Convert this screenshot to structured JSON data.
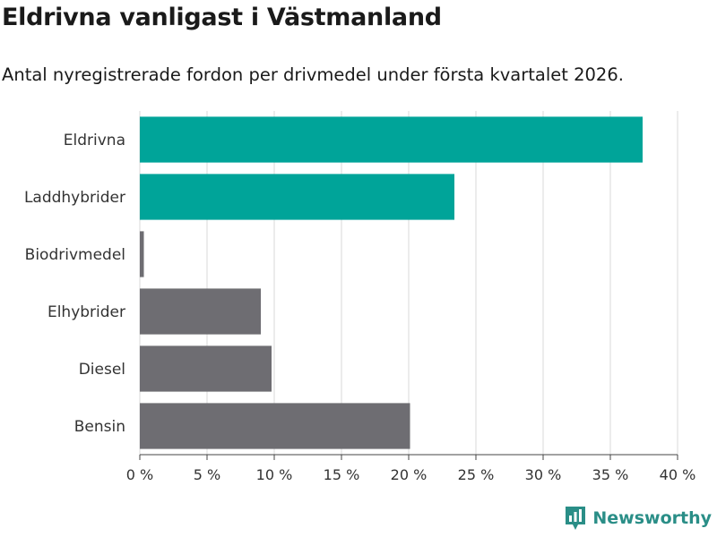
{
  "title": "Eldrivna vanligast i Västmanland",
  "subtitle": "Antal nyregistrerade fordon per drivmedel under första kvartalet 2026.",
  "brand": "Newsworthy",
  "colors": {
    "highlight": "#00a499",
    "default": "#6e6d72",
    "grid": "#d9d9d9",
    "brand": "#2a8e87"
  },
  "chart_data": {
    "type": "bar",
    "orientation": "horizontal",
    "categories": [
      "Eldrivna",
      "Laddhybrider",
      "Biodrivmedel",
      "Elhybrider",
      "Diesel",
      "Bensin"
    ],
    "values": [
      37.4,
      23.4,
      0.3,
      9.0,
      9.8,
      20.1
    ],
    "highlight": [
      true,
      true,
      false,
      false,
      false,
      false
    ],
    "xlim": [
      0,
      40
    ],
    "ticks": [
      0,
      5,
      10,
      15,
      20,
      25,
      30,
      35,
      40
    ],
    "tick_labels": [
      "0 %",
      "5 %",
      "10 %",
      "15 %",
      "20 %",
      "25 %",
      "30 %",
      "35 %",
      "40 %"
    ],
    "xlabel": "",
    "ylabel": "",
    "grid": true
  }
}
